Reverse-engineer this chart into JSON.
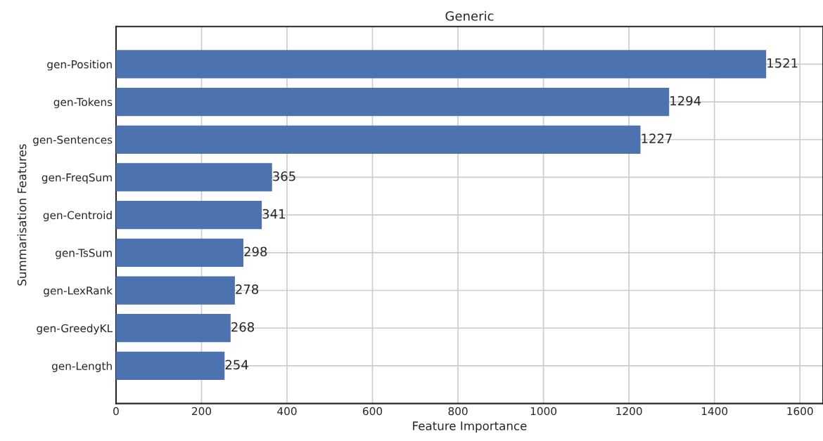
{
  "chart_data": {
    "type": "bar",
    "orientation": "horizontal",
    "title": "Generic",
    "xlabel": "Feature Importance",
    "ylabel": "Summarisation Features",
    "categories": [
      "gen-Position",
      "gen-Tokens",
      "gen-Sentences",
      "gen-FreqSum",
      "gen-Centroid",
      "gen-TsSum",
      "gen-LexRank",
      "gen-GreedyKL",
      "gen-Length"
    ],
    "values": [
      1521,
      1294,
      1227,
      365,
      341,
      298,
      278,
      268,
      254
    ],
    "color": "#4c72b0",
    "xlim": [
      0,
      1654
    ],
    "xticks": [
      0,
      200,
      400,
      600,
      800,
      1000,
      1200,
      1400,
      1600
    ],
    "grid": true,
    "data_labels": true
  }
}
